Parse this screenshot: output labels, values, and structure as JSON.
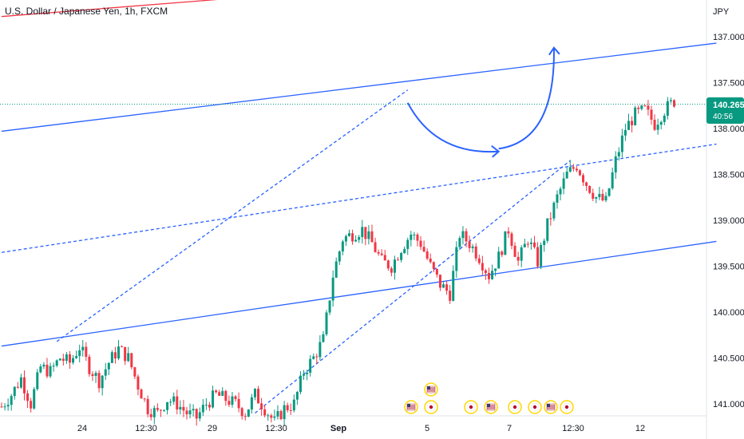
{
  "header": {
    "symbol": "U.S. Dollar / Japanese Yen",
    "timeframe": "1h",
    "exchange": "FXCM",
    "title": "U.S. Dollar / Japanese Yen, 1h, FXCM"
  },
  "price_axis": {
    "currency": "JPY",
    "ticks": [
      "141.000",
      "140.500",
      "140.000",
      "139.500",
      "139.000",
      "138.500",
      "138.000",
      "137.500",
      "137.000"
    ]
  },
  "last_price": {
    "value": "140.265",
    "countdown": "40:56"
  },
  "time_axis": {
    "ticks": [
      "24",
      "12:30",
      "29",
      "12:30",
      "Sep",
      "5",
      "7",
      "12:30",
      "12"
    ]
  },
  "colors": {
    "up": "#089981",
    "down": "#f23645",
    "channel_line": "#2962ff",
    "resistance_line": "#f23645",
    "last_price_badge": "#089981",
    "event_marker": "#ffd700"
  },
  "chart_data": {
    "type": "candlestick",
    "title": "U.S. Dollar / Japanese Yen, 1h, FXCM",
    "timeframe": "1h",
    "currency": "JPY",
    "ylim": [
      136.94,
      141.42
    ],
    "y_ticks": [
      137.0,
      137.5,
      138.0,
      138.5,
      139.0,
      139.5,
      140.0,
      140.5,
      141.0
    ],
    "x_ticks": [
      "24",
      "12:30",
      "29",
      "12:30",
      "Sep",
      "5",
      "7",
      "12:30",
      "12"
    ],
    "last_price": 140.265,
    "grid": false,
    "price_path": [
      [
        0,
        136.97
      ],
      [
        3,
        137.1
      ],
      [
        6,
        137.28
      ],
      [
        9,
        137.0
      ],
      [
        12,
        137.4
      ],
      [
        15,
        137.35
      ],
      [
        18,
        137.5
      ],
      [
        21,
        137.45
      ],
      [
        24,
        137.62
      ],
      [
        27,
        137.4
      ],
      [
        30,
        137.25
      ],
      [
        33,
        137.45
      ],
      [
        36,
        137.6
      ],
      [
        39,
        137.5
      ],
      [
        42,
        137.2
      ],
      [
        45,
        136.95
      ],
      [
        48,
        136.9
      ],
      [
        51,
        137.05
      ],
      [
        54,
        137.0
      ],
      [
        57,
        136.9
      ],
      [
        60,
        136.85
      ],
      [
        63,
        137.0
      ],
      [
        66,
        137.1
      ],
      [
        69,
        137.05
      ],
      [
        72,
        137.0
      ],
      [
        75,
        136.9
      ],
      [
        78,
        137.1
      ],
      [
        81,
        136.95
      ],
      [
        84,
        136.8
      ],
      [
        87,
        136.95
      ],
      [
        90,
        137.0
      ],
      [
        93,
        137.35
      ],
      [
        96,
        137.5
      ],
      [
        99,
        137.7
      ],
      [
        102,
        138.4
      ],
      [
        105,
        138.8
      ],
      [
        108,
        138.85
      ],
      [
        111,
        138.9
      ],
      [
        114,
        138.75
      ],
      [
        117,
        138.55
      ],
      [
        120,
        138.5
      ],
      [
        123,
        138.7
      ],
      [
        126,
        138.85
      ],
      [
        129,
        138.75
      ],
      [
        132,
        138.5
      ],
      [
        135,
        138.3
      ],
      [
        138,
        138.2
      ],
      [
        141,
        138.85
      ],
      [
        144,
        138.75
      ],
      [
        147,
        138.6
      ],
      [
        150,
        138.4
      ],
      [
        153,
        138.6
      ],
      [
        156,
        138.9
      ],
      [
        159,
        138.55
      ],
      [
        162,
        138.8
      ],
      [
        165,
        138.55
      ],
      [
        168,
        138.95
      ],
      [
        171,
        139.25
      ],
      [
        174,
        139.5
      ],
      [
        177,
        139.6
      ],
      [
        180,
        139.4
      ],
      [
        183,
        139.25
      ],
      [
        186,
        139.2
      ],
      [
        189,
        139.65
      ],
      [
        192,
        140.0
      ],
      [
        195,
        140.15
      ],
      [
        198,
        140.2
      ],
      [
        201,
        140.05
      ],
      [
        204,
        140.2
      ],
      [
        207,
        140.3
      ]
    ],
    "drawings": {
      "solid_channel_upper": [
        [
          0,
          139.97
        ],
        [
          220,
          140.93
        ]
      ],
      "solid_channel_lower": [
        [
          0,
          137.63
        ],
        [
          220,
          138.77
        ]
      ],
      "dashed_midline": [
        [
          0,
          138.65
        ],
        [
          220,
          139.83
        ]
      ],
      "dashed_rising_upper": [
        [
          17,
          137.68
        ],
        [
          125,
          140.42
        ]
      ],
      "dashed_rising_lower": [
        [
          78,
          136.9
        ],
        [
          175,
          139.65
        ]
      ],
      "resistance_line_top": [
        [
          0,
          141.22
        ],
        [
          93,
          141.48
        ]
      ],
      "projection_arrows": [
        {
          "from": [
            125,
            140.28
          ],
          "to": [
            153,
            139.75
          ]
        },
        {
          "from": [
            153,
            139.78
          ],
          "to": [
            170,
            140.88
          ]
        }
      ]
    }
  },
  "event_markers": [
    {
      "flag": "us",
      "count": "1"
    },
    {
      "flag": "us",
      "count": "1"
    },
    {
      "flag": "jp",
      "count": ""
    },
    {
      "flag": "jp",
      "count": ""
    },
    {
      "flag": "us",
      "count": "1"
    },
    {
      "flag": "jp",
      "count": ""
    },
    {
      "flag": "jp",
      "count": ""
    },
    {
      "flag": "us",
      "count": "1"
    },
    {
      "flag": "jp",
      "count": ""
    }
  ]
}
